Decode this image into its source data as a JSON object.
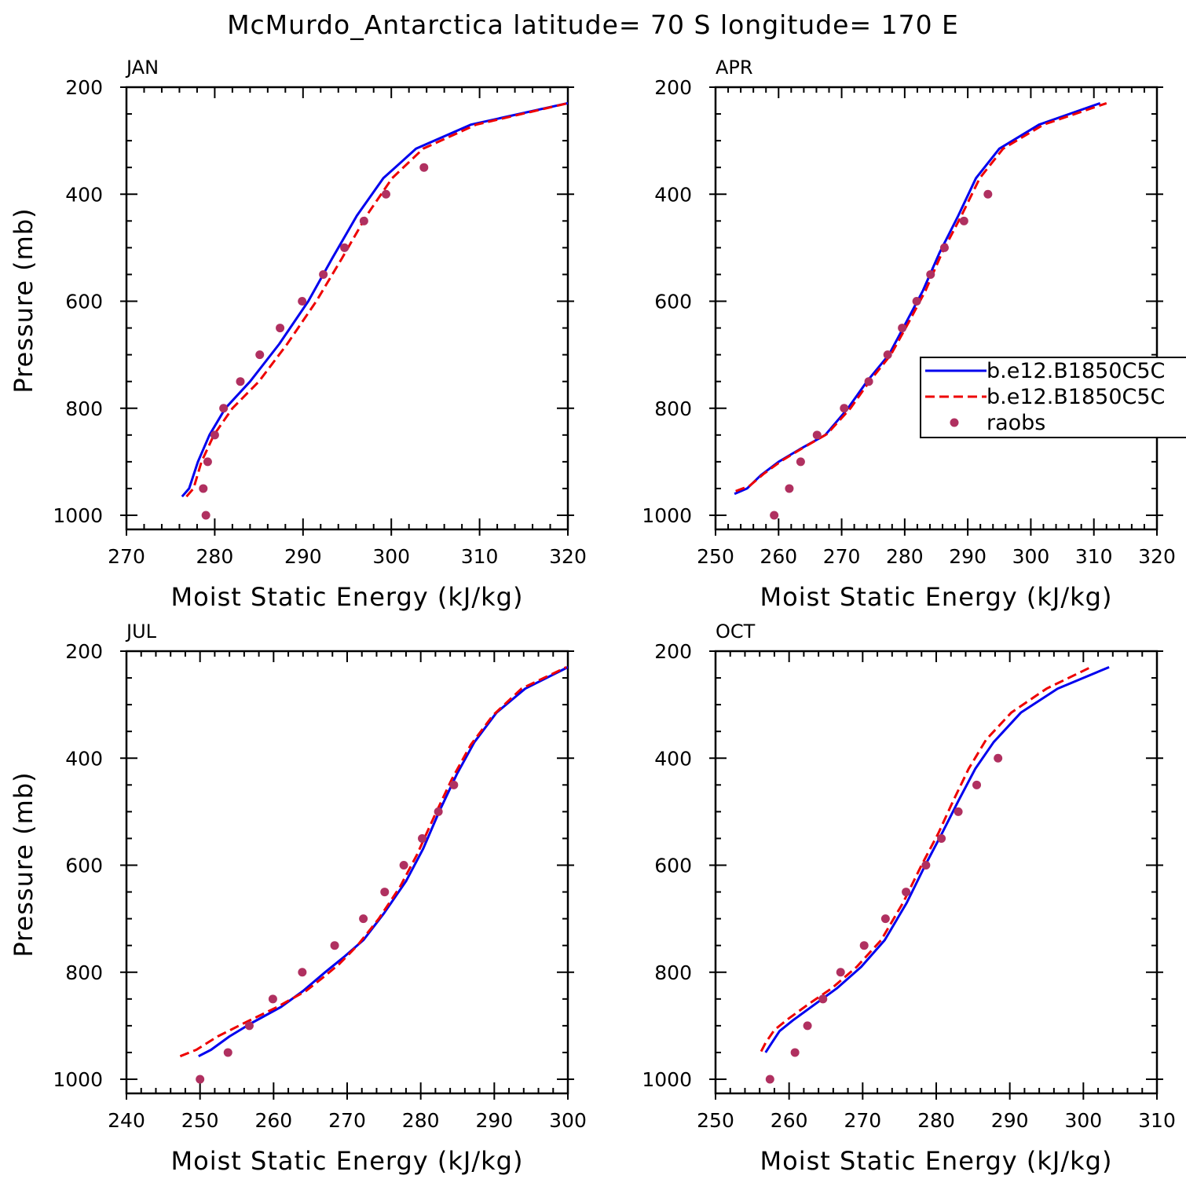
{
  "title": "McMurdo_Antarctica  latitude= 70 S longitude= 170 E",
  "colors": {
    "model_a": "#0000ee",
    "model_b": "#ee0000",
    "raobs": "#b03060"
  },
  "legend": {
    "entries": [
      {
        "label": "b.e12.B1850C5C",
        "style": "solid",
        "color_key": "model_a"
      },
      {
        "label": "b.e12.B1850C5C",
        "style": "dashed",
        "color_key": "model_b"
      },
      {
        "label": "raobs",
        "style": "marker",
        "color_key": "raobs"
      }
    ]
  },
  "chart_data": [
    {
      "type": "line",
      "panel_label": "JAN",
      "xlabel": "Moist Static Energy (kJ/kg)",
      "ylabel": "Pressure (mb)",
      "xlim": [
        270,
        320
      ],
      "ylim": [
        1000,
        200
      ],
      "xticks": [
        270,
        280,
        290,
        300,
        310,
        320
      ],
      "yticks": [
        200,
        400,
        600,
        800,
        1000
      ],
      "series": [
        {
          "color_key": "model_a",
          "style": "solid",
          "x": [
            276.3,
            277.1,
            278.1,
            279.4,
            281.2,
            284.0,
            287.3,
            290.6,
            293.3,
            296.1,
            299.1,
            302.8,
            309.0,
            320.0
          ],
          "y": [
            965,
            950,
            900,
            850,
            800,
            750,
            680,
            600,
            520,
            440,
            370,
            315,
            270,
            230
          ]
        },
        {
          "color_key": "model_b",
          "style": "dashed",
          "x": [
            276.8,
            277.6,
            278.5,
            279.9,
            282.0,
            285.0,
            288.2,
            291.5,
            294.4,
            297.2,
            300.1,
            303.6,
            309.6,
            320.0
          ],
          "y": [
            965,
            950,
            900,
            850,
            800,
            750,
            680,
            600,
            520,
            440,
            370,
            315,
            270,
            230
          ]
        },
        {
          "color_key": "raobs",
          "style": "marker",
          "x": [
            279.0,
            278.7,
            279.2,
            280.0,
            281.0,
            282.9,
            285.1,
            287.4,
            289.9,
            292.3,
            294.7,
            296.9,
            299.4,
            303.7
          ],
          "y": [
            1000,
            950,
            900,
            850,
            800,
            750,
            700,
            650,
            600,
            550,
            500,
            450,
            400,
            350
          ]
        }
      ]
    },
    {
      "type": "line",
      "panel_label": "APR",
      "xlabel": "Moist Static Energy (kJ/kg)",
      "ylabel": "",
      "xlim": [
        250,
        320
      ],
      "ylim": [
        1000,
        200
      ],
      "xticks": [
        250,
        260,
        270,
        280,
        290,
        300,
        310,
        320
      ],
      "yticks": [
        200,
        400,
        600,
        800,
        1000
      ],
      "series": [
        {
          "color_key": "model_a",
          "style": "solid",
          "x": [
            253.0,
            255.0,
            257.2,
            260.0,
            263.6,
            267.4,
            271.0,
            274.0,
            277.5,
            280.2,
            282.9,
            285.5,
            288.5,
            291.3,
            295.0,
            301.3,
            311.0
          ],
          "y": [
            960,
            950,
            925,
            900,
            875,
            850,
            800,
            750,
            700,
            640,
            580,
            510,
            440,
            370,
            315,
            270,
            230
          ]
        },
        {
          "color_key": "model_b",
          "style": "dashed",
          "x": [
            253.2,
            255.4,
            257.7,
            260.5,
            264.0,
            267.7,
            271.4,
            274.4,
            277.8,
            280.6,
            283.3,
            285.9,
            289.0,
            291.9,
            295.6,
            302.0,
            312.0
          ],
          "y": [
            955,
            945,
            922,
            898,
            873,
            848,
            800,
            750,
            700,
            640,
            580,
            510,
            440,
            370,
            315,
            270,
            230
          ]
        },
        {
          "color_key": "raobs",
          "style": "marker",
          "x": [
            259.3,
            261.7,
            263.5,
            266.1,
            270.4,
            274.3,
            277.3,
            279.6,
            281.9,
            284.1,
            286.3,
            289.4,
            293.2
          ],
          "y": [
            1000,
            950,
            900,
            850,
            800,
            750,
            700,
            650,
            600,
            550,
            500,
            450,
            400
          ]
        }
      ]
    },
    {
      "type": "line",
      "panel_label": "JUL",
      "xlabel": "Moist Static Energy (kJ/kg)",
      "ylabel": "Pressure (mb)",
      "xlim": [
        240,
        300
      ],
      "ylim": [
        1000,
        200
      ],
      "xticks": [
        240,
        250,
        260,
        270,
        280,
        290,
        300
      ],
      "yticks": [
        200,
        400,
        600,
        800,
        1000
      ],
      "series": [
        {
          "color_key": "model_a",
          "style": "solid",
          "x": [
            249.8,
            251.5,
            254.0,
            257.0,
            261.0,
            264.0,
            267.0,
            269.7,
            272.2,
            275.0,
            278.0,
            280.3,
            282.5,
            284.9,
            287.3,
            290.3,
            294.2,
            300.0
          ],
          "y": [
            957,
            945,
            920,
            895,
            865,
            835,
            800,
            770,
            740,
            690,
            630,
            570,
            500,
            430,
            370,
            315,
            270,
            230
          ]
        },
        {
          "color_key": "model_b",
          "style": "dashed",
          "x": [
            247.3,
            249.5,
            252.4,
            256.0,
            260.5,
            264.4,
            266.7,
            268.9,
            271.4,
            274.3,
            277.2,
            279.5,
            281.8,
            284.2,
            286.8,
            289.8,
            293.7,
            299.8
          ],
          "y": [
            957,
            945,
            920,
            895,
            865,
            835,
            810,
            785,
            750,
            700,
            640,
            580,
            510,
            440,
            375,
            320,
            270,
            230
          ]
        },
        {
          "color_key": "raobs",
          "style": "marker",
          "x": [
            250.0,
            253.8,
            256.7,
            259.9,
            263.9,
            268.3,
            272.2,
            275.1,
            277.7,
            280.2,
            282.4,
            284.5
          ],
          "y": [
            1000,
            950,
            900,
            850,
            800,
            750,
            700,
            650,
            600,
            550,
            500,
            450
          ]
        }
      ]
    },
    {
      "type": "line",
      "panel_label": "OCT",
      "xlabel": "Moist Static Energy (kJ/kg)",
      "ylabel": "",
      "xlim": [
        250,
        310
      ],
      "ylim": [
        1000,
        200
      ],
      "xticks": [
        250,
        260,
        270,
        280,
        290,
        300,
        310
      ],
      "yticks": [
        200,
        400,
        600,
        800,
        1000
      ],
      "series": [
        {
          "color_key": "model_a",
          "style": "solid",
          "x": [
            256.8,
            257.5,
            258.7,
            260.5,
            263.5,
            266.5,
            269.8,
            273.0,
            276.0,
            278.5,
            280.8,
            283.0,
            285.3,
            287.8,
            291.5,
            296.5,
            303.5
          ],
          "y": [
            950,
            935,
            910,
            890,
            860,
            830,
            790,
            740,
            670,
            600,
            540,
            480,
            420,
            370,
            315,
            270,
            230
          ]
        },
        {
          "color_key": "model_b",
          "style": "dashed",
          "x": [
            256.2,
            256.8,
            258.0,
            259.8,
            262.8,
            265.8,
            269.2,
            272.5,
            275.5,
            278.0,
            280.3,
            282.3,
            284.4,
            286.8,
            290.2,
            295.0,
            301.0
          ],
          "y": [
            948,
            932,
            908,
            888,
            858,
            830,
            790,
            740,
            670,
            600,
            540,
            480,
            420,
            365,
            315,
            270,
            230
          ]
        },
        {
          "color_key": "raobs",
          "style": "marker",
          "x": [
            257.4,
            260.8,
            262.5,
            264.6,
            267.0,
            270.2,
            273.1,
            275.9,
            278.6,
            280.7,
            283.0,
            285.5,
            288.4
          ],
          "y": [
            1000,
            950,
            900,
            850,
            800,
            750,
            700,
            650,
            600,
            550,
            500,
            450,
            400
          ]
        }
      ]
    }
  ]
}
